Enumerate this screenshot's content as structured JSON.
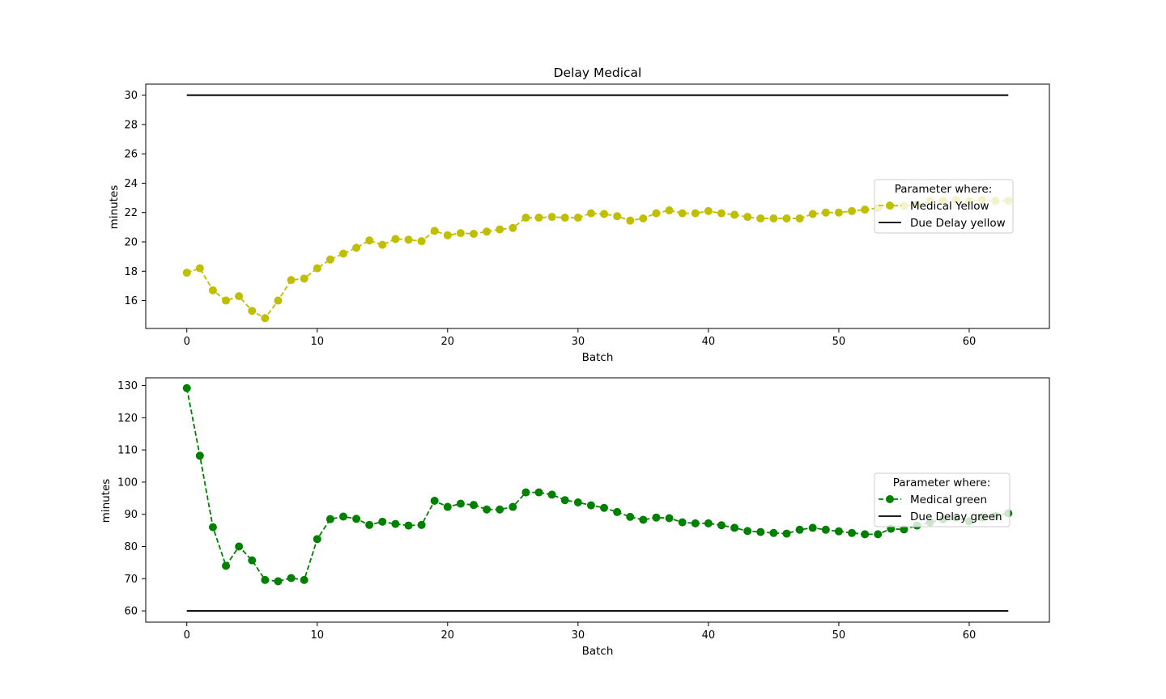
{
  "colors": {
    "yellow": "#bfbf00",
    "green": "#008000",
    "due": "#000000"
  },
  "chart_data": [
    {
      "type": "line",
      "title": "Delay Medical",
      "xlabel": "Batch",
      "ylabel": "minutes",
      "xlim": [
        -3.15,
        66.15
      ],
      "ylim": [
        14.1,
        30.75
      ],
      "xticks": [
        0,
        10,
        20,
        30,
        40,
        50,
        60
      ],
      "yticks": [
        16,
        18,
        20,
        22,
        24,
        26,
        28,
        30
      ],
      "legend": {
        "title": "Parameter where:",
        "placement": "center-right"
      },
      "series": [
        {
          "name": "Medical Yellow",
          "color_key": "yellow",
          "style": "dashed-marker",
          "x": [
            0,
            1,
            2,
            3,
            4,
            5,
            6,
            7,
            8,
            9,
            10,
            11,
            12,
            13,
            14,
            15,
            16,
            17,
            18,
            19,
            20,
            21,
            22,
            23,
            24,
            25,
            26,
            27,
            28,
            29,
            30,
            31,
            32,
            33,
            34,
            35,
            36,
            37,
            38,
            39,
            40,
            41,
            42,
            43,
            44,
            45,
            46,
            47,
            48,
            49,
            50,
            51,
            52,
            53,
            54,
            55,
            56,
            57,
            58,
            59,
            60,
            61,
            62,
            63
          ],
          "values": [
            17.9,
            18.2,
            16.7,
            16.0,
            16.3,
            15.3,
            14.8,
            16.0,
            17.4,
            17.5,
            18.2,
            18.8,
            19.2,
            19.6,
            20.1,
            19.8,
            20.2,
            20.15,
            20.05,
            20.75,
            20.45,
            20.6,
            20.55,
            20.7,
            20.85,
            20.95,
            21.65,
            21.65,
            21.7,
            21.65,
            21.65,
            21.95,
            21.9,
            21.75,
            21.45,
            21.6,
            21.95,
            22.15,
            21.95,
            21.95,
            22.1,
            21.95,
            21.85,
            21.7,
            21.6,
            21.6,
            21.6,
            21.6,
            21.9,
            22.0,
            22.0,
            22.1,
            22.2,
            22.3,
            22.4,
            22.45,
            22.55,
            22.8,
            22.8,
            22.85,
            22.8,
            22.85,
            22.8,
            22.8
          ]
        },
        {
          "name": "Due Delay yellow",
          "color_key": "due",
          "style": "solid",
          "x": [
            0,
            63
          ],
          "values": [
            30,
            30
          ]
        }
      ]
    },
    {
      "type": "line",
      "title": "",
      "xlabel": "Batch",
      "ylabel": "minutes",
      "xlim": [
        -3.15,
        66.15
      ],
      "ylim": [
        56.5,
        132.4
      ],
      "xticks": [
        0,
        10,
        20,
        30,
        40,
        50,
        60
      ],
      "yticks": [
        60,
        70,
        80,
        90,
        100,
        110,
        120,
        130
      ],
      "legend": {
        "title": "Parameter where:",
        "placement": "center-right"
      },
      "series": [
        {
          "name": "Medical green",
          "color_key": "green",
          "style": "dashed-marker",
          "x": [
            0,
            1,
            2,
            3,
            4,
            5,
            6,
            7,
            8,
            9,
            10,
            11,
            12,
            13,
            14,
            15,
            16,
            17,
            18,
            19,
            20,
            21,
            22,
            23,
            24,
            25,
            26,
            27,
            28,
            29,
            30,
            31,
            32,
            33,
            34,
            35,
            36,
            37,
            38,
            39,
            40,
            41,
            42,
            43,
            44,
            45,
            46,
            47,
            48,
            49,
            50,
            51,
            52,
            53,
            54,
            55,
            56,
            57,
            58,
            59,
            60,
            61,
            62,
            63
          ],
          "values": [
            129.2,
            108.2,
            86.0,
            74.0,
            80.0,
            75.7,
            69.6,
            69.2,
            70.2,
            69.6,
            82.3,
            88.5,
            89.3,
            88.6,
            86.7,
            87.7,
            87.0,
            86.5,
            86.7,
            94.2,
            92.3,
            93.3,
            92.9,
            91.5,
            91.5,
            92.3,
            96.8,
            96.8,
            96.1,
            94.4,
            93.7,
            92.8,
            92.0,
            90.7,
            89.2,
            88.3,
            89.0,
            88.8,
            87.5,
            87.2,
            87.2,
            86.6,
            85.8,
            84.8,
            84.5,
            84.2,
            84.0,
            85.2,
            85.8,
            85.2,
            84.7,
            84.2,
            83.8,
            83.8,
            85.5,
            85.3,
            86.5,
            87.5,
            88.5,
            89.0,
            87.8,
            89.0,
            89.5,
            90.3
          ]
        },
        {
          "name": "Due Delay green",
          "color_key": "due",
          "style": "solid",
          "x": [
            0,
            63
          ],
          "values": [
            60,
            60
          ]
        }
      ]
    }
  ]
}
